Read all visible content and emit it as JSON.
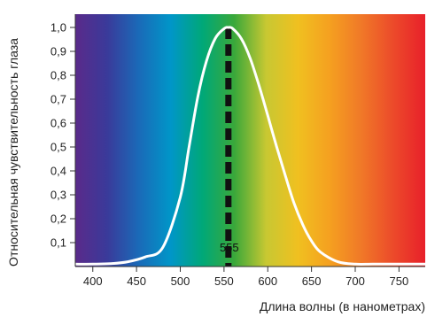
{
  "chart_data": {
    "type": "line",
    "title": "",
    "xlabel": "Длина волны (в нанометрах)",
    "ylabel": "Относительная чувствительность глаза",
    "xlim": [
      380,
      780
    ],
    "ylim": [
      0,
      1.0
    ],
    "x_ticks": [
      400,
      450,
      500,
      550,
      600,
      650,
      700,
      750
    ],
    "x_tick_labels": [
      "400",
      "450",
      "500",
      "550",
      "600",
      "650",
      "700",
      "750"
    ],
    "y_ticks": [
      0.1,
      0.2,
      0.3,
      0.4,
      0.5,
      0.6,
      0.7,
      0.8,
      0.9,
      1.0
    ],
    "y_tick_labels": [
      "0,1",
      "0,2",
      "0,3",
      "0,4",
      "0,5",
      "0,6",
      "0,7",
      "0,8",
      "0,9",
      "1,0"
    ],
    "background": "visible light spectrum gradient",
    "spectrum_colors": [
      "#5a2a8a",
      "#3a3a9a",
      "#1a6ab8",
      "#0096c8",
      "#00a878",
      "#3aa83a",
      "#c8c832",
      "#f0c020",
      "#f5a020",
      "#f07828",
      "#ec4a2a",
      "#e8202a"
    ],
    "curve_color": "#ffffff",
    "marker_color": "#111111",
    "grid": false,
    "legend": "none",
    "series": [
      {
        "x": [
          380,
          400,
          420,
          440,
          460,
          480,
          500,
          510,
          520,
          530,
          540,
          550,
          555,
          560,
          570,
          580,
          590,
          600,
          610,
          620,
          630,
          640,
          650,
          660,
          680,
          700,
          720,
          750,
          780
        ],
        "y": [
          0.01,
          0.01,
          0.012,
          0.02,
          0.04,
          0.08,
          0.29,
          0.5,
          0.71,
          0.86,
          0.954,
          0.995,
          1.0,
          0.995,
          0.952,
          0.87,
          0.757,
          0.631,
          0.503,
          0.381,
          0.265,
          0.175,
          0.107,
          0.061,
          0.02,
          0.01,
          0.01,
          0.01,
          0.01
        ]
      }
    ],
    "annotations": [
      {
        "x": 555,
        "label": "555",
        "style": "dashed vertical line"
      }
    ]
  }
}
